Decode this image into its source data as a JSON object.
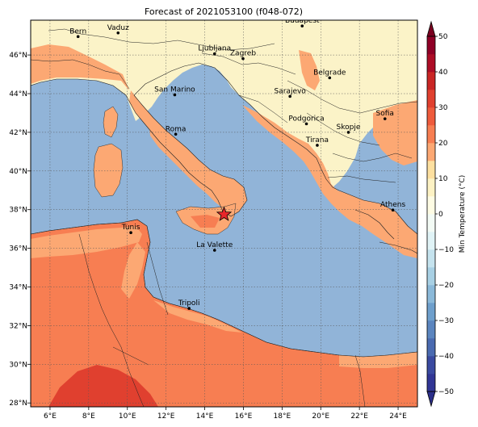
{
  "title": "Forecast of 2021053100 (f048-072)",
  "map": {
    "lon_range": [
      5,
      25
    ],
    "lat_range": [
      27.8,
      47.8
    ],
    "x_ticks": [
      {
        "value": 6,
        "label": "6°E"
      },
      {
        "value": 8,
        "label": "8°E"
      },
      {
        "value": 10,
        "label": "10°E"
      },
      {
        "value": 12,
        "label": "12°E"
      },
      {
        "value": 14,
        "label": "14°E"
      },
      {
        "value": 16,
        "label": "16°E"
      },
      {
        "value": 18,
        "label": "18°E"
      },
      {
        "value": 20,
        "label": "20°E"
      },
      {
        "value": 22,
        "label": "22°E"
      },
      {
        "value": 24,
        "label": "24°E"
      }
    ],
    "y_ticks": [
      {
        "value": 28,
        "label": "28°N"
      },
      {
        "value": 30,
        "label": "30°N"
      },
      {
        "value": 32,
        "label": "32°N"
      },
      {
        "value": 34,
        "label": "34°N"
      },
      {
        "value": 36,
        "label": "36°N"
      },
      {
        "value": 38,
        "label": "38°N"
      },
      {
        "value": 40,
        "label": "40°N"
      },
      {
        "value": 42,
        "label": "42°N"
      },
      {
        "value": 44,
        "label": "44°N"
      },
      {
        "value": 46,
        "label": "46°N"
      }
    ],
    "grid": true,
    "sea_color": "#91b4d8",
    "marker": {
      "type": "star",
      "lon": 15.0,
      "lat": 37.75,
      "color": "#e8262a"
    },
    "cities": [
      {
        "name": "Bern",
        "lon": 7.45,
        "lat": 46.95
      },
      {
        "name": "Vaduz",
        "lon": 9.52,
        "lat": 47.14
      },
      {
        "name": "Budapest",
        "lon": 19.04,
        "lat": 47.5
      },
      {
        "name": "Ljubljana",
        "lon": 14.51,
        "lat": 46.06
      },
      {
        "name": "Zagreb",
        "lon": 15.98,
        "lat": 45.81
      },
      {
        "name": "Belgrade",
        "lon": 20.46,
        "lat": 44.82
      },
      {
        "name": "San Marino",
        "lon": 12.45,
        "lat": 43.94
      },
      {
        "name": "Sarajevo",
        "lon": 18.41,
        "lat": 43.86
      },
      {
        "name": "Sofia",
        "lon": 23.32,
        "lat": 42.7
      },
      {
        "name": "Roma",
        "lon": 12.5,
        "lat": 41.9
      },
      {
        "name": "Podgorica",
        "lon": 19.26,
        "lat": 42.44
      },
      {
        "name": "Skopje",
        "lon": 21.43,
        "lat": 42.0
      },
      {
        "name": "Tirana",
        "lon": 19.82,
        "lat": 41.33
      },
      {
        "name": "Athens",
        "lon": 23.73,
        "lat": 37.98
      },
      {
        "name": "Tunis",
        "lon": 10.18,
        "lat": 36.81
      },
      {
        "name": "La Valette",
        "lon": 14.51,
        "lat": 35.9
      },
      {
        "name": "Tripoli",
        "lon": 13.19,
        "lat": 32.89
      }
    ]
  },
  "colorbar": {
    "label": "Min Temperature (°C)",
    "range": [
      -50,
      50
    ],
    "ticks": [
      {
        "value": 50,
        "label": "50"
      },
      {
        "value": 40,
        "label": "40"
      },
      {
        "value": 30,
        "label": "30"
      },
      {
        "value": 20,
        "label": "20"
      },
      {
        "value": 10,
        "label": "10"
      },
      {
        "value": 0,
        "label": "0"
      },
      {
        "value": -10,
        "label": "−10"
      },
      {
        "value": -20,
        "label": "−20"
      },
      {
        "value": -30,
        "label": "−30"
      },
      {
        "value": -40,
        "label": "−40"
      },
      {
        "value": -50,
        "label": "−50"
      }
    ],
    "bands": [
      {
        "from": -50,
        "to": -45,
        "color": "#313695"
      },
      {
        "from": -45,
        "to": -40,
        "color": "#3a4aa0"
      },
      {
        "from": -40,
        "to": -35,
        "color": "#4a6ab0"
      },
      {
        "from": -35,
        "to": -30,
        "color": "#5b85bf"
      },
      {
        "from": -30,
        "to": -25,
        "color": "#6e9fcc"
      },
      {
        "from": -25,
        "to": -20,
        "color": "#8bb9d9"
      },
      {
        "from": -20,
        "to": -15,
        "color": "#a8d0e4"
      },
      {
        "from": -15,
        "to": -10,
        "color": "#c5e3ee"
      },
      {
        "from": -10,
        "to": -5,
        "color": "#e0f3f6"
      },
      {
        "from": -5,
        "to": 0,
        "color": "#f3fbf5"
      },
      {
        "from": 0,
        "to": 5,
        "color": "#fefce4"
      },
      {
        "from": 5,
        "to": 10,
        "color": "#fdf2c4"
      },
      {
        "from": 10,
        "to": 15,
        "color": "#fde0a0"
      },
      {
        "from": 15,
        "to": 20,
        "color": "#fca873"
      },
      {
        "from": 20,
        "to": 25,
        "color": "#f77e52"
      },
      {
        "from": 25,
        "to": 30,
        "color": "#ee5b3c"
      },
      {
        "from": 30,
        "to": 35,
        "color": "#e0402f"
      },
      {
        "from": 35,
        "to": 40,
        "color": "#c92625"
      },
      {
        "from": 40,
        "to": 45,
        "color": "#ad0d26"
      },
      {
        "from": 45,
        "to": 50,
        "color": "#8f0026"
      }
    ],
    "under_color": "#2b2f8a",
    "over_color": "#7a0020"
  }
}
